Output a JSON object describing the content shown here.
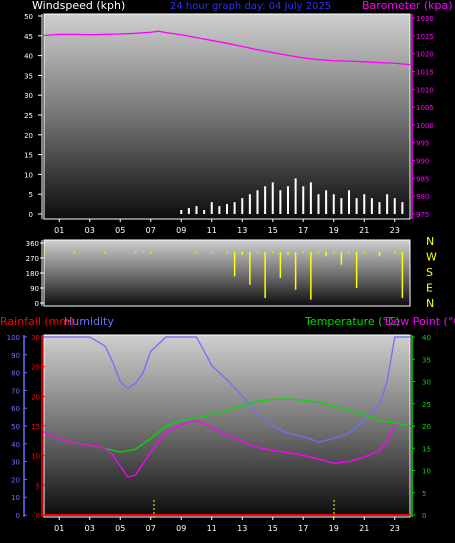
{
  "header": {
    "left_label": "Windspeed (kph)",
    "center_label": "24 hour graph day: 04 July 2025",
    "right_label": "Barometer (kpa)"
  },
  "colors": {
    "wind": "#ffffff",
    "barometer": "#ff00ff",
    "direction": "#ffff00",
    "rainfall": "#ff0000",
    "humidity": "#6f6fff",
    "temperature": "#00dd00",
    "dewpoint": "#ff00ff",
    "plot_bg_top": "#cfcfcf",
    "plot_bg_bottom": "#101010"
  },
  "chart_data": [
    {
      "type": "line",
      "panel": "wind-barometer",
      "ylabel_left": "Windspeed (kph)",
      "ylabel_right": "Barometer (kpa)",
      "x_ticks": [
        "01",
        "03",
        "05",
        "07",
        "09",
        "11",
        "13",
        "15",
        "17",
        "19",
        "21",
        "23"
      ],
      "ylim_left": [
        0,
        50
      ],
      "y_ticks_left": [
        "0",
        "5",
        "10",
        "15",
        "20",
        "25",
        "30",
        "35",
        "40",
        "45",
        "50"
      ],
      "ylim_right": [
        975,
        1030
      ],
      "y_ticks_right": [
        "975",
        "980",
        "985",
        "990",
        "995",
        "1000",
        "1005",
        "1010",
        "1015",
        "1020",
        "1025",
        "1030"
      ],
      "series": [
        {
          "name": "Barometer (kpa)",
          "axis": "right",
          "x": [
            0,
            1,
            2,
            3,
            4,
            5,
            6,
            7,
            7.5,
            8,
            9,
            10,
            11,
            12,
            13,
            14,
            15,
            16,
            17,
            18,
            19,
            20,
            21,
            22,
            23,
            24
          ],
          "y": [
            1025.1,
            1025.4,
            1025.4,
            1025.3,
            1025.4,
            1025.5,
            1025.7,
            1026.0,
            1026.3,
            1025.9,
            1025.3,
            1024.5,
            1023.7,
            1022.9,
            1022.0,
            1021.1,
            1020.3,
            1019.5,
            1018.8,
            1018.3,
            1018.0,
            1017.9,
            1017.7,
            1017.5,
            1017.3,
            1016.9
          ]
        },
        {
          "name": "Windspeed (kph)",
          "axis": "left",
          "x": [
            9,
            9.5,
            10,
            10.5,
            11,
            11.5,
            12,
            12.5,
            13,
            13.5,
            14,
            14.5,
            15,
            15.5,
            16,
            16.5,
            17,
            17.5,
            18,
            18.5,
            19,
            19.5,
            20,
            20.5,
            21,
            21.5,
            22,
            22.5,
            23,
            23.5
          ],
          "y": [
            1,
            1.5,
            2,
            1,
            3,
            2,
            2.5,
            3,
            4,
            5,
            6,
            7,
            8,
            6,
            7,
            9,
            7,
            8,
            5,
            6,
            5,
            4,
            6,
            4,
            5,
            4,
            3,
            5,
            4,
            3
          ]
        }
      ]
    },
    {
      "type": "scatter",
      "panel": "wind-direction",
      "ylim": [
        0,
        360
      ],
      "y_ticks": [
        "0",
        "90",
        "180",
        "270",
        "360"
      ],
      "direction_labels": [
        "N",
        "W",
        "S",
        "E",
        "N"
      ],
      "series": [
        {
          "name": "Wind direction",
          "x": [
            0,
            2,
            4,
            6,
            6.5,
            7,
            8,
            9,
            10,
            11,
            12,
            12.5,
            13,
            13.5,
            14,
            14.5,
            15,
            15.5,
            16,
            16.5,
            17,
            17.5,
            18,
            18.5,
            19,
            19.5,
            20,
            20.5,
            21,
            22,
            23,
            23.5
          ],
          "y": [
            300,
            300,
            300,
            300,
            310,
            300,
            305,
            305,
            300,
            300,
            300,
            160,
            290,
            110,
            300,
            30,
            300,
            150,
            290,
            80,
            300,
            20,
            300,
            280,
            300,
            230,
            300,
            90,
            300,
            280,
            300,
            30
          ]
        }
      ]
    },
    {
      "type": "line",
      "panel": "rain-humidity-temperature",
      "ylabel_left_1": "Rainfall (mm)",
      "ylabel_left_2": "Humidity",
      "ylabel_right_1": "Temperature (°C)",
      "ylabel_right_2": "Dew Point (°C)",
      "x_ticks": [
        "01",
        "03",
        "05",
        "07",
        "09",
        "11",
        "13",
        "15",
        "17",
        "19",
        "21",
        "23"
      ],
      "ylim_rain": [
        0,
        30
      ],
      "y_ticks_rain": [
        "0",
        "5",
        "10",
        "15",
        "20",
        "25",
        "30"
      ],
      "ylim_humidity": [
        0,
        100
      ],
      "y_ticks_humidity": [
        "0",
        "10",
        "20",
        "30",
        "40",
        "50",
        "60",
        "70",
        "80",
        "90",
        "100"
      ],
      "ylim_temperature": [
        0,
        40
      ],
      "y_ticks_temperature": [
        "0",
        "5",
        "10",
        "15",
        "20",
        "25",
        "30",
        "35",
        "40"
      ],
      "series": [
        {
          "name": "Humidity",
          "axis": "humidity",
          "x": [
            0,
            1,
            2,
            3,
            4,
            4.5,
            5,
            5.5,
            6,
            6.5,
            7,
            8,
            9,
            10,
            10.5,
            11,
            12,
            13,
            14,
            15,
            16,
            17,
            18,
            19,
            20,
            21,
            22,
            22.5,
            23,
            24
          ],
          "y": [
            100,
            100,
            100,
            100,
            95,
            86,
            75,
            71,
            74,
            80,
            92,
            100,
            100,
            100,
            92,
            84,
            76,
            67,
            57,
            50,
            46,
            44,
            41,
            43,
            46,
            53,
            62,
            75,
            100,
            100
          ]
        },
        {
          "name": "Temperature (°C)",
          "axis": "temperature",
          "x": [
            0,
            1,
            2,
            3,
            4,
            5,
            6,
            7,
            8,
            9,
            10,
            11,
            12,
            13,
            14,
            15,
            16,
            17,
            18,
            19,
            20,
            21,
            22,
            23,
            24
          ],
          "y": [
            18.7,
            17,
            16.2,
            15.7,
            15,
            14.1,
            14.8,
            17.2,
            20,
            21.2,
            21.8,
            22.5,
            23.5,
            24.6,
            25.6,
            26,
            26.1,
            25.8,
            25.4,
            24.4,
            23.5,
            22.5,
            21.2,
            20.7,
            20
          ]
        },
        {
          "name": "Dew Point (°C)",
          "axis": "temperature",
          "x": [
            0,
            1,
            2,
            3,
            4,
            4.5,
            5,
            5.5,
            6,
            7,
            8,
            9,
            10,
            11,
            12,
            13,
            14,
            15,
            16,
            17,
            18,
            19,
            20,
            21,
            22,
            22.5,
            23
          ],
          "y": [
            18.7,
            17,
            16.2,
            15.7,
            15,
            13.5,
            11,
            8.5,
            9,
            14.1,
            18.5,
            20.3,
            21.3,
            19.7,
            18,
            16.5,
            15.2,
            14.5,
            14,
            13.4,
            12.6,
            11.6,
            12,
            13,
            14.5,
            16.5,
            20.5
          ]
        },
        {
          "name": "Rainfall (mm)",
          "axis": "rain",
          "x": [
            0,
            24
          ],
          "y": [
            0,
            0
          ]
        }
      ]
    }
  ]
}
